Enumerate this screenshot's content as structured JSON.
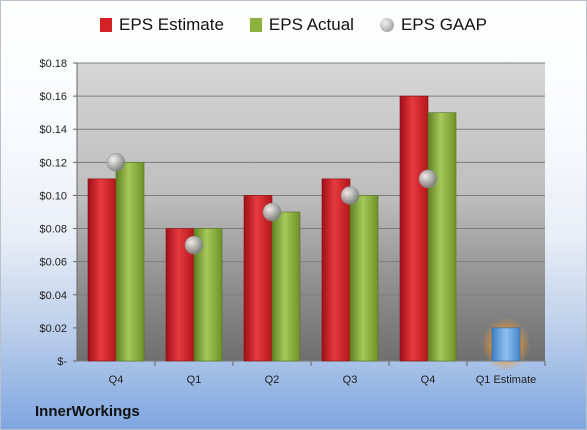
{
  "company": "InnerWorkings",
  "legend": [
    {
      "label": "EPS Estimate",
      "color": "#d42126",
      "shape": "square"
    },
    {
      "label": "EPS Actual",
      "color": "#8cb13c",
      "shape": "square"
    },
    {
      "label": "EPS GAAP",
      "color": "#a9a9a9",
      "shape": "circle"
    }
  ],
  "chart_data": {
    "type": "bar",
    "categories": [
      "Q4",
      "Q1",
      "Q2",
      "Q3",
      "Q4",
      "Q1 Estimate"
    ],
    "series": [
      {
        "name": "EPS Estimate",
        "color": "#d42126",
        "values": [
          0.11,
          0.08,
          0.1,
          0.11,
          0.16,
          null
        ]
      },
      {
        "name": "EPS Actual",
        "color": "#8cb13c",
        "values": [
          0.12,
          0.08,
          0.09,
          0.1,
          0.15,
          null
        ]
      },
      {
        "name": "EPS GAAP",
        "color": "#a9a9a9",
        "marker": "circle",
        "values": [
          0.12,
          0.07,
          0.09,
          0.1,
          0.11,
          null
        ]
      },
      {
        "name": "Q1 Estimate",
        "color": "#6aa3e0",
        "values": [
          null,
          null,
          null,
          null,
          null,
          0.02
        ]
      }
    ],
    "ylim": [
      0,
      0.18
    ],
    "yticks": [
      0,
      0.02,
      0.04,
      0.06,
      0.08,
      0.1,
      0.12,
      0.14,
      0.16,
      0.18
    ],
    "ytick_labels": [
      "$-",
      "$0.02",
      "$0.04",
      "$0.06",
      "$0.08",
      "$0.10",
      "$0.12",
      "$0.14",
      "$0.16",
      "$0.18"
    ],
    "grid": true
  }
}
